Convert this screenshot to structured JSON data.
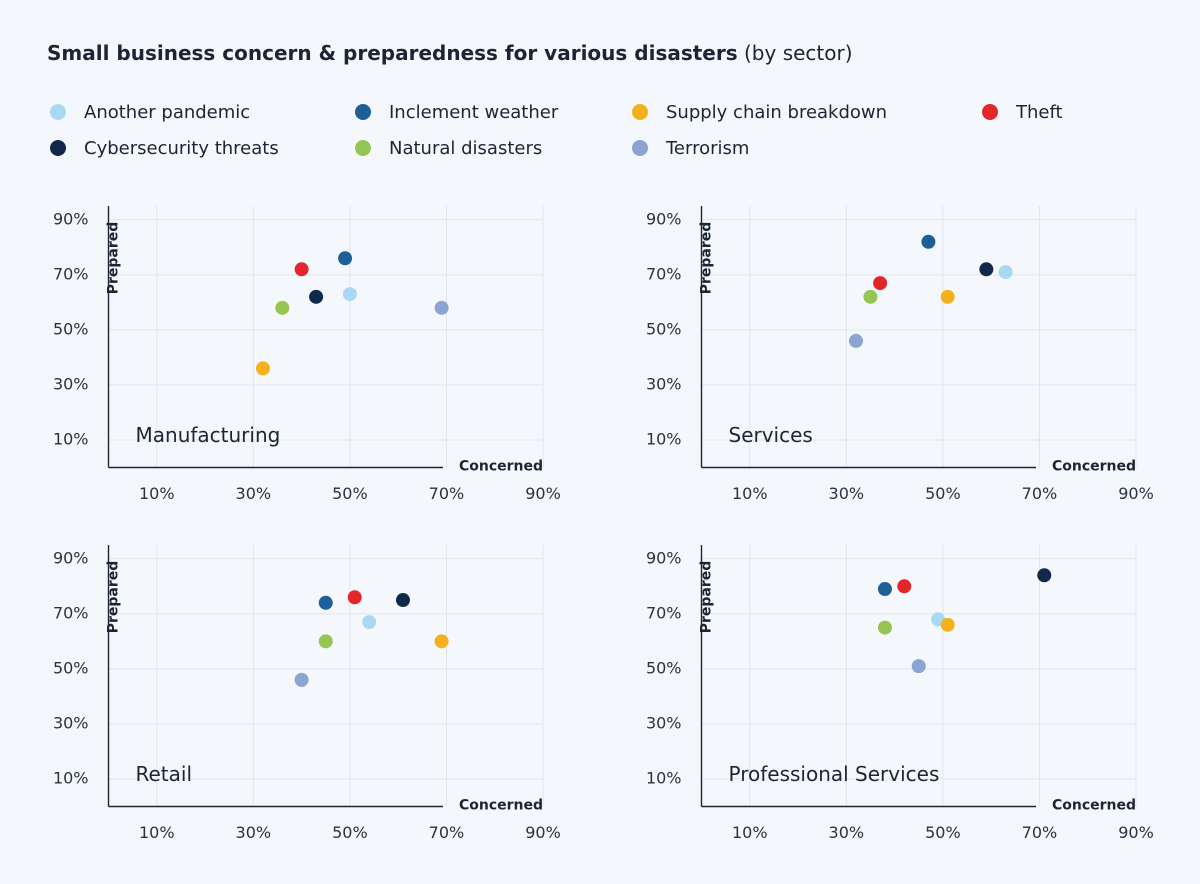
{
  "title": "Small business concern & preparedness for various disasters",
  "subtitle": "(by sector)",
  "chart_data": [
    {
      "type": "scatter",
      "title": "Manufacturing",
      "xlabel": "Concerned",
      "ylabel": "Prepared",
      "xlim": [
        0,
        90
      ],
      "ylim": [
        0,
        95
      ],
      "xticks": [
        {
          "value": 10,
          "label": "10%"
        },
        {
          "value": 30,
          "label": "30%"
        },
        {
          "value": 50,
          "label": "50%"
        },
        {
          "value": 70,
          "label": "70%"
        },
        {
          "value": 90,
          "label": "90%"
        }
      ],
      "yticks": [
        {
          "value": 10,
          "label": "10%"
        },
        {
          "value": 30,
          "label": "30%"
        },
        {
          "value": 50,
          "label": "50%"
        },
        {
          "value": 70,
          "label": "70%"
        },
        {
          "value": 90,
          "label": "90%"
        }
      ],
      "grid": true,
      "series": [
        {
          "name": "Another pandemic",
          "color": "#a9d9f2",
          "x": [
            50
          ],
          "values": [
            63
          ]
        },
        {
          "name": "Inclement weather",
          "color": "#1d5f97",
          "x": [
            49
          ],
          "values": [
            76
          ]
        },
        {
          "name": "Supply chain breakdown",
          "color": "#f4b11c",
          "x": [
            32
          ],
          "values": [
            36
          ]
        },
        {
          "name": "Theft",
          "color": "#e2262a",
          "x": [
            40
          ],
          "values": [
            72
          ]
        },
        {
          "name": "Cybersecurity threats",
          "color": "#10284a",
          "x": [
            43
          ],
          "values": [
            62
          ]
        },
        {
          "name": "Natural disasters",
          "color": "#97c552",
          "x": [
            36
          ],
          "values": [
            58
          ]
        },
        {
          "name": "Terrorism",
          "color": "#8ba4d2",
          "x": [
            69
          ],
          "values": [
            58
          ]
        }
      ]
    },
    {
      "type": "scatter",
      "title": "Services",
      "xlabel": "Concerned",
      "ylabel": "Prepared",
      "xlim": [
        0,
        90
      ],
      "ylim": [
        0,
        95
      ],
      "xticks": [
        {
          "value": 10,
          "label": "10%"
        },
        {
          "value": 30,
          "label": "30%"
        },
        {
          "value": 50,
          "label": "50%"
        },
        {
          "value": 70,
          "label": "70%"
        },
        {
          "value": 90,
          "label": "90%"
        }
      ],
      "yticks": [
        {
          "value": 10,
          "label": "10%"
        },
        {
          "value": 30,
          "label": "30%"
        },
        {
          "value": 50,
          "label": "50%"
        },
        {
          "value": 70,
          "label": "70%"
        },
        {
          "value": 90,
          "label": "90%"
        }
      ],
      "grid": true,
      "series": [
        {
          "name": "Another pandemic",
          "color": "#a9d9f2",
          "x": [
            63
          ],
          "values": [
            71
          ]
        },
        {
          "name": "Inclement weather",
          "color": "#1d5f97",
          "x": [
            47
          ],
          "values": [
            82
          ]
        },
        {
          "name": "Supply chain breakdown",
          "color": "#f4b11c",
          "x": [
            51
          ],
          "values": [
            62
          ]
        },
        {
          "name": "Theft",
          "color": "#e2262a",
          "x": [
            37
          ],
          "values": [
            67
          ]
        },
        {
          "name": "Cybersecurity threats",
          "color": "#10284a",
          "x": [
            59
          ],
          "values": [
            72
          ]
        },
        {
          "name": "Natural disasters",
          "color": "#97c552",
          "x": [
            35
          ],
          "values": [
            62
          ]
        },
        {
          "name": "Terrorism",
          "color": "#8ba4d2",
          "x": [
            32
          ],
          "values": [
            46
          ]
        }
      ]
    },
    {
      "type": "scatter",
      "title": "Retail",
      "xlabel": "Concerned",
      "ylabel": "Prepared",
      "xlim": [
        0,
        90
      ],
      "ylim": [
        0,
        95
      ],
      "xticks": [
        {
          "value": 10,
          "label": "10%"
        },
        {
          "value": 30,
          "label": "30%"
        },
        {
          "value": 50,
          "label": "50%"
        },
        {
          "value": 70,
          "label": "70%"
        },
        {
          "value": 90,
          "label": "90%"
        }
      ],
      "yticks": [
        {
          "value": 10,
          "label": "10%"
        },
        {
          "value": 30,
          "label": "30%"
        },
        {
          "value": 50,
          "label": "50%"
        },
        {
          "value": 70,
          "label": "70%"
        },
        {
          "value": 90,
          "label": "90%"
        }
      ],
      "grid": true,
      "series": [
        {
          "name": "Another pandemic",
          "color": "#a9d9f2",
          "x": [
            54
          ],
          "values": [
            67
          ]
        },
        {
          "name": "Inclement weather",
          "color": "#1d5f97",
          "x": [
            45
          ],
          "values": [
            74
          ]
        },
        {
          "name": "Supply chain breakdown",
          "color": "#f4b11c",
          "x": [
            69
          ],
          "values": [
            60
          ]
        },
        {
          "name": "Theft",
          "color": "#e2262a",
          "x": [
            51
          ],
          "values": [
            76
          ]
        },
        {
          "name": "Cybersecurity threats",
          "color": "#10284a",
          "x": [
            61
          ],
          "values": [
            75
          ]
        },
        {
          "name": "Natural disasters",
          "color": "#97c552",
          "x": [
            45
          ],
          "values": [
            60
          ]
        },
        {
          "name": "Terrorism",
          "color": "#8ba4d2",
          "x": [
            40
          ],
          "values": [
            46
          ]
        }
      ]
    },
    {
      "type": "scatter",
      "title": "Professional Services",
      "xlabel": "Concerned",
      "ylabel": "Prepared",
      "xlim": [
        0,
        90
      ],
      "ylim": [
        0,
        95
      ],
      "xticks": [
        {
          "value": 10,
          "label": "10%"
        },
        {
          "value": 30,
          "label": "30%"
        },
        {
          "value": 50,
          "label": "50%"
        },
        {
          "value": 70,
          "label": "70%"
        },
        {
          "value": 90,
          "label": "90%"
        }
      ],
      "yticks": [
        {
          "value": 10,
          "label": "10%"
        },
        {
          "value": 30,
          "label": "30%"
        },
        {
          "value": 50,
          "label": "50%"
        },
        {
          "value": 70,
          "label": "70%"
        },
        {
          "value": 90,
          "label": "90%"
        }
      ],
      "grid": true,
      "series": [
        {
          "name": "Another pandemic",
          "color": "#a9d9f2",
          "x": [
            49
          ],
          "values": [
            68
          ]
        },
        {
          "name": "Inclement weather",
          "color": "#1d5f97",
          "x": [
            38
          ],
          "values": [
            79
          ]
        },
        {
          "name": "Supply chain breakdown",
          "color": "#f4b11c",
          "x": [
            51
          ],
          "values": [
            66
          ]
        },
        {
          "name": "Theft",
          "color": "#e2262a",
          "x": [
            42
          ],
          "values": [
            80
          ]
        },
        {
          "name": "Cybersecurity threats",
          "color": "#10284a",
          "x": [
            71
          ],
          "values": [
            84
          ]
        },
        {
          "name": "Natural disasters",
          "color": "#97c552",
          "x": [
            38
          ],
          "values": [
            65
          ]
        },
        {
          "name": "Terrorism",
          "color": "#8ba4d2",
          "x": [
            45
          ],
          "values": [
            51
          ]
        }
      ]
    }
  ]
}
